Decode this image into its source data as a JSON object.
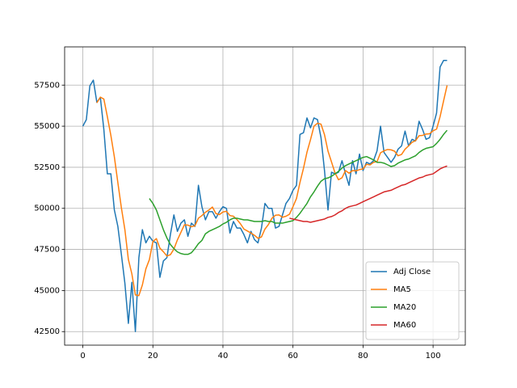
{
  "chart_data": {
    "type": "line",
    "x": [
      0,
      1,
      2,
      3,
      4,
      5,
      6,
      7,
      8,
      9,
      10,
      11,
      12,
      13,
      14,
      15,
      16,
      17,
      18,
      19,
      20,
      21,
      22,
      23,
      24,
      25,
      26,
      27,
      28,
      29,
      30,
      31,
      32,
      33,
      34,
      35,
      36,
      37,
      38,
      39,
      40,
      41,
      42,
      43,
      44,
      45,
      46,
      47,
      48,
      49,
      50,
      51,
      52,
      53,
      54,
      55,
      56,
      57,
      58,
      59,
      60,
      61,
      62,
      63,
      64,
      65,
      66,
      67,
      68,
      69,
      70,
      71,
      72,
      73,
      74,
      75,
      76,
      77,
      78,
      79,
      80,
      81,
      82,
      83,
      84,
      85,
      86,
      87,
      88,
      89,
      90,
      91,
      92,
      93,
      94,
      95,
      96,
      97,
      98,
      99,
      100,
      101,
      102,
      103,
      104
    ],
    "series": [
      {
        "name": "Adj Close",
        "color": "#1f77b4",
        "values": [
          55000,
          55400,
          57450,
          57800,
          56450,
          56750,
          54800,
          52100,
          52100,
          49900,
          48900,
          47200,
          45450,
          43000,
          45500,
          42500,
          47000,
          48700,
          47900,
          48300,
          48000,
          47900,
          45800,
          46800,
          47000,
          48400,
          49600,
          48600,
          49100,
          49300,
          48300,
          49100,
          48900,
          51400,
          50100,
          49300,
          49800,
          49800,
          49400,
          49800,
          50100,
          50000,
          48500,
          49200,
          48800,
          48800,
          48400,
          47900,
          48600,
          48100,
          47900,
          48800,
          50300,
          50000,
          50000,
          48800,
          48900,
          49600,
          50300,
          50600,
          51100,
          51400,
          54500,
          54600,
          55500,
          54900,
          55500,
          55400,
          54300,
          52300,
          49900,
          52200,
          52100,
          52200,
          52900,
          52100,
          51400,
          52900,
          52100,
          53300,
          52300,
          52800,
          52700,
          52900,
          53500,
          55000,
          53400,
          53100,
          52800,
          53100,
          53600,
          53800,
          54700,
          53800,
          54200,
          54100,
          55300,
          54800,
          54200,
          54300,
          55000,
          55800,
          58600,
          59000,
          59000
        ]
      },
      {
        "name": "MA5",
        "color": "#ff7f0e",
        "values": [
          null,
          null,
          null,
          null,
          56420,
          56770,
          56650,
          55580,
          54440,
          53130,
          51560,
          50040,
          48710,
          46890,
          46010,
          44730,
          44690,
          45340,
          46320,
          46880,
          47980,
          48160,
          47580,
          47360,
          47100,
          47180,
          47520,
          48080,
          48540,
          49000,
          48980,
          48880,
          48940,
          49400,
          49560,
          49760,
          49900,
          50080,
          49680,
          49620,
          49780,
          49820,
          49560,
          49520,
          49320,
          49060,
          48740,
          48620,
          48500,
          48360,
          48180,
          48260,
          48740,
          49020,
          49400,
          49580,
          49600,
          49460,
          49520,
          49640,
          50100,
          50600,
          51580,
          52440,
          53420,
          54180,
          55000,
          55180,
          55120,
          54480,
          53480,
          52820,
          52160,
          51740,
          51860,
          52300,
          52140,
          52300,
          52280,
          52360,
          52400,
          52680,
          52640,
          52800,
          52840,
          53380,
          53500,
          53580,
          53560,
          53480,
          53200,
          53280,
          53600,
          53800,
          54020,
          54120,
          54420,
          54440,
          54520,
          54540,
          54720,
          54820,
          55580,
          56540,
          57480
        ]
      },
      {
        "name": "MA20",
        "color": "#2ca02c",
        "values": [
          null,
          null,
          null,
          null,
          null,
          null,
          null,
          null,
          null,
          null,
          null,
          null,
          null,
          null,
          null,
          null,
          null,
          null,
          null,
          50600,
          50300,
          49900,
          49300,
          48700,
          48200,
          47800,
          47550,
          47350,
          47250,
          47200,
          47200,
          47300,
          47550,
          47850,
          48050,
          48450,
          48600,
          48700,
          48800,
          48900,
          49050,
          49150,
          49300,
          49400,
          49400,
          49350,
          49300,
          49300,
          49250,
          49200,
          49200,
          49200,
          49250,
          49200,
          49200,
          49100,
          49100,
          49100,
          49150,
          49200,
          49250,
          49450,
          49700,
          50000,
          50300,
          50700,
          51000,
          51350,
          51650,
          51800,
          51850,
          51950,
          52100,
          52250,
          52450,
          52600,
          52700,
          52800,
          52900,
          53000,
          53100,
          53150,
          53050,
          52950,
          52800,
          52800,
          52750,
          52650,
          52550,
          52600,
          52750,
          52850,
          52950,
          53000,
          53100,
          53200,
          53400,
          53550,
          53650,
          53700,
          53750,
          53950,
          54200,
          54500,
          54750
        ]
      },
      {
        "name": "MA60",
        "color": "#d62728",
        "values": [
          null,
          null,
          null,
          null,
          null,
          null,
          null,
          null,
          null,
          null,
          null,
          null,
          null,
          null,
          null,
          null,
          null,
          null,
          null,
          null,
          null,
          null,
          null,
          null,
          null,
          null,
          null,
          null,
          null,
          null,
          null,
          null,
          null,
          null,
          null,
          null,
          null,
          null,
          null,
          null,
          null,
          null,
          null,
          null,
          null,
          null,
          null,
          null,
          null,
          null,
          null,
          null,
          null,
          null,
          null,
          null,
          null,
          null,
          null,
          49400,
          49350,
          49300,
          49250,
          49200,
          49200,
          49150,
          49200,
          49250,
          49300,
          49350,
          49450,
          49500,
          49600,
          49750,
          49850,
          50000,
          50100,
          50150,
          50200,
          50300,
          50400,
          50500,
          50600,
          50700,
          50800,
          50900,
          51000,
          51050,
          51100,
          51200,
          51300,
          51400,
          51450,
          51550,
          51650,
          51750,
          51850,
          51900,
          52000,
          52050,
          52100,
          52250,
          52400,
          52500,
          52580
        ]
      }
    ],
    "xlim": [
      -5.2,
      109.2
    ],
    "ylim": [
      41675,
      59825
    ],
    "xticks": [
      0,
      20,
      40,
      60,
      80,
      100
    ],
    "yticks": [
      42500,
      45000,
      47500,
      50000,
      52500,
      55000,
      57500
    ],
    "grid": true,
    "legend": "lower right"
  }
}
